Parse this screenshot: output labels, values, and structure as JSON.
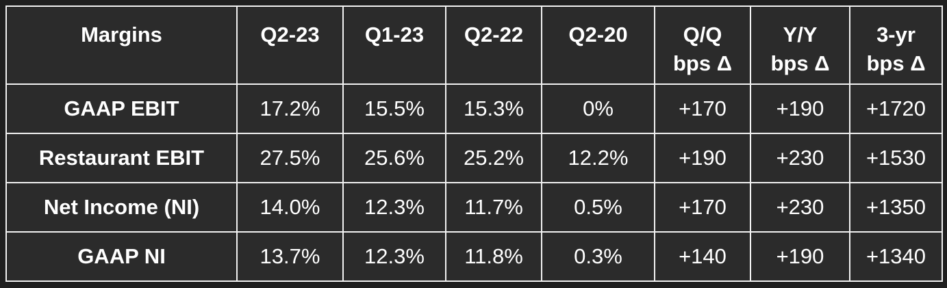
{
  "table": {
    "header": [
      "Margins",
      "Q2-23",
      "Q1-23",
      "Q2-22",
      "Q2-20",
      "Q/Q\nbps Δ",
      "Y/Y\nbps Δ",
      "3-yr\nbps Δ"
    ],
    "rows": [
      [
        "GAAP EBIT",
        "17.2%",
        "15.5%",
        "15.3%",
        "0%",
        "+170",
        "+190",
        "+1720"
      ],
      [
        "Restaurant EBIT",
        "27.5%",
        "25.6%",
        "25.2%",
        "12.2%",
        "+190",
        "+230",
        "+1530"
      ],
      [
        "Net Income (NI)",
        "14.0%",
        "12.3%",
        "11.7%",
        "0.5%",
        "+170",
        "+230",
        "+1350"
      ],
      [
        "GAAP NI",
        "13.7%",
        "12.3%",
        "11.8%",
        "0.3%",
        "+140",
        "+190",
        "+1340"
      ]
    ]
  }
}
